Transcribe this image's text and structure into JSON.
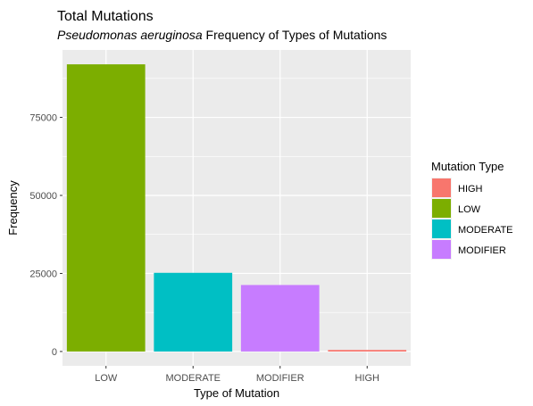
{
  "chart_data": {
    "type": "bar",
    "title": "Total Mutations",
    "subtitle_italic": "Pseudomonas aeruginosa",
    "subtitle_rest": " Frequency of Types of Mutations",
    "xlabel": "Type of Mutation",
    "ylabel": "Frequency",
    "categories": [
      "LOW",
      "MODERATE",
      "MODIFIER",
      "HIGH"
    ],
    "values": [
      92000,
      25200,
      21300,
      500
    ],
    "bar_colors": [
      "#7CAE00",
      "#00BFC4",
      "#C77CFF",
      "#F8766D"
    ],
    "ylim": [
      -4600,
      96600
    ],
    "yticks": [
      0,
      25000,
      50000,
      75000
    ],
    "ytick_labels": [
      "0",
      "25000",
      "50000",
      "75000"
    ],
    "grid": true,
    "legend": {
      "title": "Mutation Type",
      "position": "right",
      "entries": [
        {
          "label": "HIGH",
          "color": "#F8766D"
        },
        {
          "label": "LOW",
          "color": "#7CAE00"
        },
        {
          "label": "MODERATE",
          "color": "#00BFC4"
        },
        {
          "label": "MODIFIER",
          "color": "#C77CFF"
        }
      ]
    }
  }
}
